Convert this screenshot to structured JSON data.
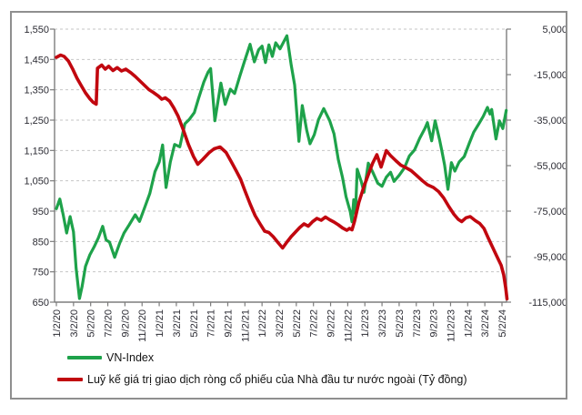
{
  "colors": {
    "vnindex_line": "#1ea24a",
    "foreign_net_line": "#c1070f",
    "gridline": "#c6c6c6",
    "axis_line": "#7d7d7d",
    "tick_label": "#2b2b33",
    "frame_border": "#8f8f8f",
    "background": "#ffffff"
  },
  "chart_data": {
    "type": "line",
    "title": "",
    "grid": "horizontal-dashed",
    "legend_position": "bottom-left",
    "x_axis": {
      "unit": "date (m/d/yy), bi-monthly ticks",
      "tick_labels": [
        "1/2/20",
        "3/2/20",
        "5/2/20",
        "7/2/20",
        "9/2/20",
        "11/2/20",
        "1/2/21",
        "3/2/21",
        "5/2/21",
        "7/2/21",
        "9/2/21",
        "11/2/21",
        "1/2/22",
        "3/2/22",
        "5/2/22",
        "7/2/22",
        "9/2/22",
        "11/2/22",
        "1/2/23",
        "3/2/23",
        "5/2/23",
        "7/2/23",
        "9/2/23",
        "11/2/23",
        "1/2/24",
        "3/2/24",
        "5/2/24"
      ],
      "months_per_tick": 2,
      "total_months": 52.6
    },
    "left_axis": {
      "series": "VN-Index",
      "min": 650,
      "max": 1550,
      "step": 100,
      "tick_values": [
        1550,
        1450,
        1350,
        1250,
        1150,
        1050,
        950,
        850,
        750,
        650
      ],
      "tick_labels": [
        "1,550",
        "1,450",
        "1,350",
        "1,250",
        "1,150",
        "1,050",
        "950",
        "850",
        "750",
        "650"
      ]
    },
    "right_axis": {
      "series": "Luỹ kế giá trị giao dịch ròng cổ phiếu của Nhà đầu tư nước ngoài (Tỷ đồng)",
      "min": -115000,
      "max": 5000,
      "step": 20000,
      "tick_values": [
        5000,
        -15000,
        -35000,
        -55000,
        -75000,
        -95000,
        -115000
      ],
      "tick_labels": [
        "5,000",
        "-15,000",
        "-35,000",
        "-55,000",
        "-75,000",
        "-95,000",
        "-115,000"
      ]
    },
    "series": [
      {
        "name": "VN-Index",
        "axis": "left",
        "color": "#1ea24a",
        "stroke_width": 3.2,
        "points_x_month_y_value": [
          [
            0,
            958
          ],
          [
            0.4,
            990
          ],
          [
            0.8,
            938
          ],
          [
            1.2,
            878
          ],
          [
            1.6,
            932
          ],
          [
            2.0,
            882
          ],
          [
            2.3,
            762
          ],
          [
            2.7,
            662
          ],
          [
            3.0,
            702
          ],
          [
            3.4,
            768
          ],
          [
            3.9,
            806
          ],
          [
            4.4,
            832
          ],
          [
            4.9,
            862
          ],
          [
            5.4,
            900
          ],
          [
            5.8,
            855
          ],
          [
            6.2,
            848
          ],
          [
            6.8,
            798
          ],
          [
            7.4,
            845
          ],
          [
            7.9,
            878
          ],
          [
            8.5,
            905
          ],
          [
            9.2,
            938
          ],
          [
            9.7,
            916
          ],
          [
            10.3,
            962
          ],
          [
            10.9,
            1008
          ],
          [
            11.5,
            1080
          ],
          [
            12.0,
            1112
          ],
          [
            12.4,
            1168
          ],
          [
            12.8,
            1028
          ],
          [
            13.3,
            1112
          ],
          [
            13.8,
            1170
          ],
          [
            14.4,
            1162
          ],
          [
            15.0,
            1238
          ],
          [
            15.5,
            1252
          ],
          [
            16.1,
            1275
          ],
          [
            16.6,
            1322
          ],
          [
            17.2,
            1375
          ],
          [
            17.7,
            1408
          ],
          [
            18.0,
            1420
          ],
          [
            18.5,
            1248
          ],
          [
            19.2,
            1372
          ],
          [
            19.7,
            1302
          ],
          [
            20.3,
            1352
          ],
          [
            20.8,
            1338
          ],
          [
            21.4,
            1395
          ],
          [
            22.0,
            1448
          ],
          [
            22.6,
            1500
          ],
          [
            23.1,
            1442
          ],
          [
            23.6,
            1482
          ],
          [
            24.0,
            1494
          ],
          [
            24.4,
            1440
          ],
          [
            24.8,
            1498
          ],
          [
            25.2,
            1460
          ],
          [
            25.6,
            1505
          ],
          [
            26.1,
            1485
          ],
          [
            26.9,
            1528
          ],
          [
            27.4,
            1432
          ],
          [
            27.8,
            1366
          ],
          [
            28.3,
            1180
          ],
          [
            28.7,
            1298
          ],
          [
            29.2,
            1218
          ],
          [
            29.6,
            1172
          ],
          [
            30.1,
            1202
          ],
          [
            30.6,
            1252
          ],
          [
            31.2,
            1288
          ],
          [
            31.9,
            1248
          ],
          [
            32.4,
            1205
          ],
          [
            32.9,
            1120
          ],
          [
            33.4,
            1060
          ],
          [
            33.8,
            998
          ],
          [
            34.3,
            948
          ],
          [
            34.5,
            915
          ],
          [
            34.7,
            988
          ],
          [
            34.9,
            942
          ],
          [
            35.1,
            1088
          ],
          [
            35.6,
            1045
          ],
          [
            35.9,
            1012
          ],
          [
            36.4,
            1108
          ],
          [
            36.9,
            1080
          ],
          [
            37.5,
            1042
          ],
          [
            38.0,
            1032
          ],
          [
            38.5,
            1062
          ],
          [
            39.0,
            1078
          ],
          [
            39.4,
            1048
          ],
          [
            40.0,
            1068
          ],
          [
            40.6,
            1092
          ],
          [
            41.2,
            1132
          ],
          [
            41.8,
            1152
          ],
          [
            42.4,
            1190
          ],
          [
            43.0,
            1222
          ],
          [
            43.3,
            1242
          ],
          [
            43.8,
            1182
          ],
          [
            44.2,
            1248
          ],
          [
            44.7,
            1188
          ],
          [
            45.0,
            1147
          ],
          [
            45.3,
            1102
          ],
          [
            45.7,
            1022
          ],
          [
            46.1,
            1110
          ],
          [
            46.5,
            1082
          ],
          [
            47.0,
            1112
          ],
          [
            47.6,
            1130
          ],
          [
            48.2,
            1175
          ],
          [
            48.7,
            1210
          ],
          [
            49.3,
            1238
          ],
          [
            49.8,
            1262
          ],
          [
            50.3,
            1292
          ],
          [
            50.6,
            1270
          ],
          [
            50.8,
            1285
          ],
          [
            51.3,
            1188
          ],
          [
            51.7,
            1248
          ],
          [
            52.1,
            1222
          ],
          [
            52.5,
            1282
          ]
        ]
      },
      {
        "name": "Luỹ kế giá trị giao dịch ròng cổ phiếu của Nhà đầu tư nước ngoài (Tỷ đồng)",
        "axis": "right",
        "color": "#c1070f",
        "stroke_width": 3.6,
        "points_x_month_y_value": [
          [
            0,
            -7400
          ],
          [
            0.5,
            -6400
          ],
          [
            0.9,
            -7000
          ],
          [
            1.4,
            -9000
          ],
          [
            1.9,
            -12500
          ],
          [
            2.4,
            -16500
          ],
          [
            2.9,
            -19800
          ],
          [
            3.4,
            -23000
          ],
          [
            3.9,
            -25600
          ],
          [
            4.3,
            -27200
          ],
          [
            4.65,
            -28000
          ],
          [
            4.8,
            -12200
          ],
          [
            5.3,
            -10800
          ],
          [
            5.7,
            -12600
          ],
          [
            6.1,
            -11300
          ],
          [
            6.6,
            -13200
          ],
          [
            7.1,
            -11900
          ],
          [
            7.6,
            -13400
          ],
          [
            8.1,
            -12600
          ],
          [
            8.7,
            -14200
          ],
          [
            9.2,
            -15800
          ],
          [
            9.7,
            -17600
          ],
          [
            10.2,
            -19400
          ],
          [
            10.8,
            -21600
          ],
          [
            11.3,
            -22800
          ],
          [
            11.9,
            -24400
          ],
          [
            12.3,
            -25800
          ],
          [
            12.7,
            -25200
          ],
          [
            13.2,
            -26600
          ],
          [
            13.7,
            -29600
          ],
          [
            14.2,
            -33200
          ],
          [
            14.8,
            -39200
          ],
          [
            15.4,
            -45600
          ],
          [
            16.0,
            -51000
          ],
          [
            16.5,
            -54400
          ],
          [
            17.1,
            -52200
          ],
          [
            17.8,
            -49400
          ],
          [
            18.4,
            -47600
          ],
          [
            19.1,
            -46800
          ],
          [
            19.8,
            -49200
          ],
          [
            20.4,
            -53200
          ],
          [
            21.0,
            -57400
          ],
          [
            21.5,
            -61000
          ],
          [
            22.0,
            -66000
          ],
          [
            22.6,
            -71800
          ],
          [
            23.2,
            -77000
          ],
          [
            23.8,
            -80800
          ],
          [
            24.3,
            -83800
          ],
          [
            24.8,
            -84400
          ],
          [
            25.3,
            -86200
          ],
          [
            25.9,
            -89000
          ],
          [
            26.4,
            -91200
          ],
          [
            26.9,
            -88600
          ],
          [
            27.4,
            -86200
          ],
          [
            27.9,
            -84200
          ],
          [
            28.4,
            -82200
          ],
          [
            28.9,
            -80600
          ],
          [
            29.4,
            -81600
          ],
          [
            29.9,
            -79600
          ],
          [
            30.4,
            -78200
          ],
          [
            30.9,
            -79000
          ],
          [
            31.4,
            -77600
          ],
          [
            31.9,
            -78800
          ],
          [
            32.4,
            -79800
          ],
          [
            32.9,
            -81000
          ],
          [
            33.4,
            -82400
          ],
          [
            33.9,
            -83400
          ],
          [
            34.2,
            -82600
          ],
          [
            34.5,
            -83200
          ],
          [
            34.8,
            -79400
          ],
          [
            35.3,
            -71200
          ],
          [
            35.9,
            -64000
          ],
          [
            36.4,
            -59000
          ],
          [
            36.9,
            -54000
          ],
          [
            37.4,
            -50200
          ],
          [
            37.9,
            -55600
          ],
          [
            38.5,
            -48400
          ],
          [
            39.0,
            -50600
          ],
          [
            39.6,
            -52800
          ],
          [
            40.2,
            -54800
          ],
          [
            40.8,
            -55900
          ],
          [
            41.4,
            -57200
          ],
          [
            42.0,
            -59200
          ],
          [
            42.7,
            -61600
          ],
          [
            43.3,
            -63400
          ],
          [
            44.0,
            -64600
          ],
          [
            44.6,
            -66400
          ],
          [
            45.2,
            -69200
          ],
          [
            45.8,
            -73000
          ],
          [
            46.4,
            -76400
          ],
          [
            46.9,
            -78600
          ],
          [
            47.3,
            -79600
          ],
          [
            47.8,
            -77900
          ],
          [
            48.3,
            -77400
          ],
          [
            48.9,
            -79200
          ],
          [
            49.4,
            -80400
          ],
          [
            49.9,
            -82600
          ],
          [
            50.4,
            -86800
          ],
          [
            50.9,
            -90800
          ],
          [
            51.4,
            -94800
          ],
          [
            51.9,
            -98800
          ],
          [
            52.2,
            -103000
          ],
          [
            52.45,
            -109000
          ],
          [
            52.6,
            -113500
          ]
        ]
      }
    ],
    "legend": [
      {
        "label": "VN-Index",
        "color": "#1ea24a"
      },
      {
        "label": "Luỹ kế giá trị giao dịch ròng cổ phiếu của Nhà đầu tư nước ngoài (Tỷ đồng)",
        "color": "#c1070f"
      }
    ]
  }
}
